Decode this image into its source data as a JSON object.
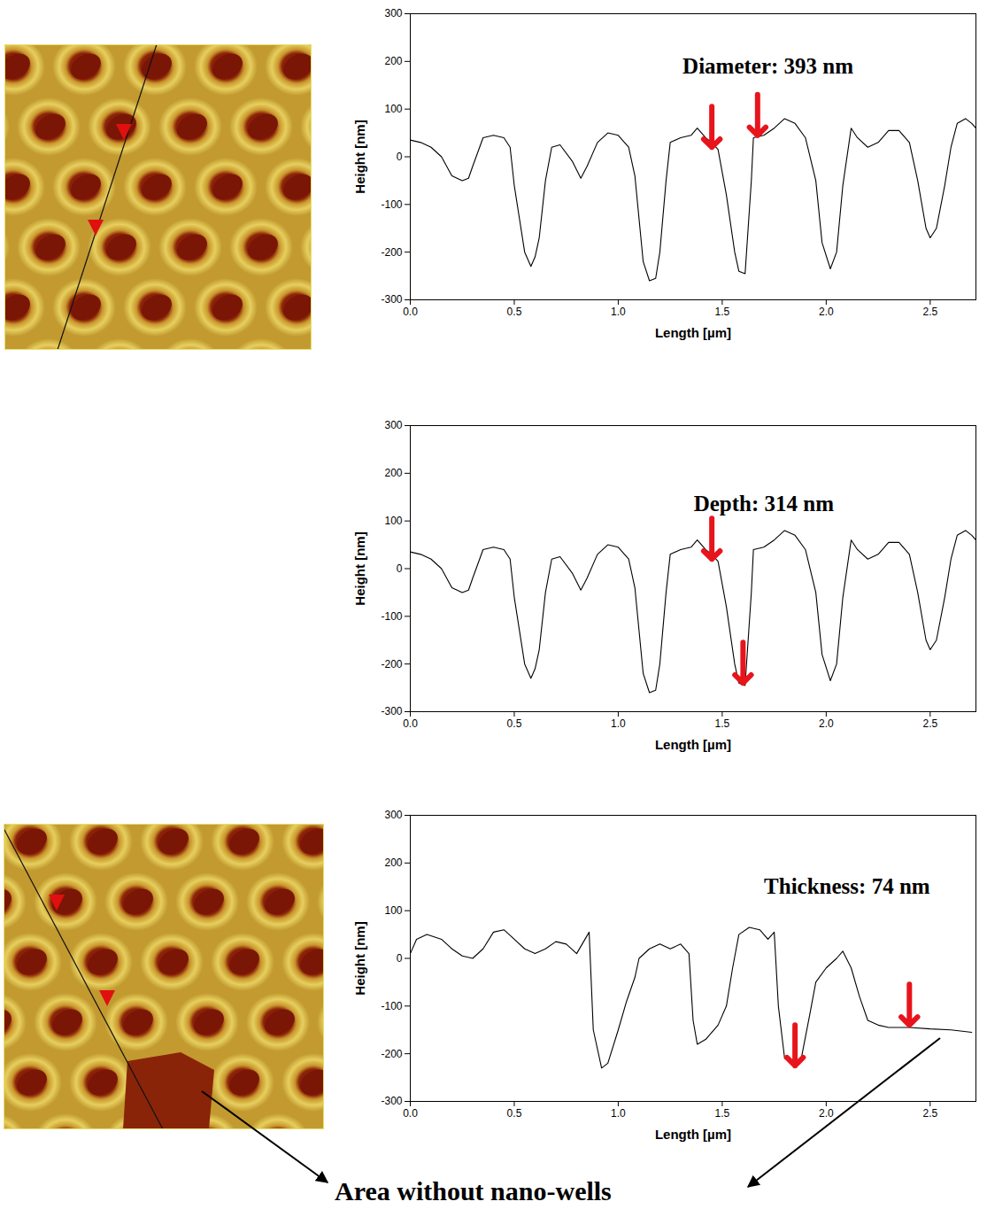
{
  "chart_data": [
    {
      "type": "line",
      "color": "#000000",
      "x_label": "Length [µm]",
      "y_label": "Height [nm]",
      "xlim": [
        0,
        2.72
      ],
      "xticks": [
        {
          "value": 0,
          "label": "0.0"
        },
        0.5,
        {
          "value": 1,
          "label": "1.0"
        },
        1.5,
        {
          "value": 2,
          "label": "2.0"
        },
        2.5
      ],
      "ylim": [
        -300,
        300
      ],
      "yticks": [
        -300,
        -200,
        -100,
        0,
        100,
        200,
        300
      ],
      "x": [
        0,
        0.05,
        0.1,
        0.15,
        0.2,
        0.25,
        0.28,
        0.3,
        0.35,
        0.4,
        0.45,
        0.48,
        0.5,
        0.55,
        0.58,
        0.6,
        0.62,
        0.65,
        0.68,
        0.72,
        0.78,
        0.82,
        0.85,
        0.9,
        0.95,
        1.0,
        1.05,
        1.08,
        1.12,
        1.15,
        1.18,
        1.2,
        1.23,
        1.25,
        1.3,
        1.35,
        1.38,
        1.42,
        1.45,
        1.48,
        1.52,
        1.56,
        1.58,
        1.61,
        1.64,
        1.65,
        1.7,
        1.75,
        1.8,
        1.85,
        1.9,
        1.95,
        1.98,
        2.02,
        2.05,
        2.08,
        2.12,
        2.15,
        2.2,
        2.25,
        2.3,
        2.35,
        2.4,
        2.44,
        2.48,
        2.5,
        2.53,
        2.57,
        2.6,
        2.63,
        2.67,
        2.7,
        2.72
      ],
      "values": [
        35,
        30,
        20,
        0,
        -40,
        -50,
        -45,
        -20,
        40,
        45,
        40,
        20,
        -60,
        -200,
        -230,
        -210,
        -170,
        -50,
        20,
        25,
        -10,
        -45,
        -20,
        30,
        50,
        45,
        20,
        -40,
        -220,
        -260,
        -255,
        -200,
        -50,
        30,
        40,
        45,
        60,
        40,
        30,
        15,
        -80,
        -200,
        -240,
        -245,
        -50,
        40,
        45,
        60,
        80,
        70,
        40,
        -50,
        -180,
        -235,
        -200,
        -60,
        60,
        40,
        20,
        30,
        55,
        55,
        30,
        -50,
        -150,
        -170,
        -150,
        -60,
        20,
        70,
        80,
        70,
        60
      ],
      "annotation": {
        "text": "Diameter: 393 nm",
        "x": 1.72,
        "y": 190
      },
      "arrows": [
        {
          "x": 1.45,
          "y": 20
        },
        {
          "x": 1.67,
          "y": 45
        }
      ]
    },
    {
      "type": "line",
      "color": "#000000",
      "x_label": "Length [µm]",
      "y_label": "Height [nm]",
      "xlim": [
        0,
        2.72
      ],
      "xticks": [
        {
          "value": 0,
          "label": "0.0"
        },
        0.5,
        {
          "value": 1,
          "label": "1.0"
        },
        1.5,
        {
          "value": 2,
          "label": "2.0"
        },
        2.5
      ],
      "ylim": [
        -300,
        300
      ],
      "yticks": [
        -300,
        -200,
        -100,
        0,
        100,
        200,
        300
      ],
      "x": [
        0,
        0.05,
        0.1,
        0.15,
        0.2,
        0.25,
        0.28,
        0.3,
        0.35,
        0.4,
        0.45,
        0.48,
        0.5,
        0.55,
        0.58,
        0.6,
        0.62,
        0.65,
        0.68,
        0.72,
        0.78,
        0.82,
        0.85,
        0.9,
        0.95,
        1.0,
        1.05,
        1.08,
        1.12,
        1.15,
        1.18,
        1.2,
        1.23,
        1.25,
        1.3,
        1.35,
        1.38,
        1.42,
        1.45,
        1.48,
        1.52,
        1.56,
        1.58,
        1.61,
        1.64,
        1.65,
        1.7,
        1.75,
        1.8,
        1.85,
        1.9,
        1.95,
        1.98,
        2.02,
        2.05,
        2.08,
        2.12,
        2.15,
        2.2,
        2.25,
        2.3,
        2.35,
        2.4,
        2.44,
        2.48,
        2.5,
        2.53,
        2.57,
        2.6,
        2.63,
        2.67,
        2.7,
        2.72
      ],
      "values": [
        35,
        30,
        20,
        0,
        -40,
        -50,
        -45,
        -20,
        40,
        45,
        40,
        20,
        -60,
        -200,
        -230,
        -210,
        -170,
        -50,
        20,
        25,
        -10,
        -45,
        -20,
        30,
        50,
        45,
        20,
        -40,
        -220,
        -260,
        -255,
        -200,
        -50,
        30,
        40,
        45,
        60,
        40,
        30,
        15,
        -80,
        -200,
        -240,
        -245,
        -50,
        40,
        45,
        60,
        80,
        70,
        40,
        -50,
        -180,
        -235,
        -200,
        -60,
        60,
        40,
        20,
        30,
        55,
        55,
        30,
        -50,
        -150,
        -170,
        -150,
        -60,
        20,
        70,
        80,
        70,
        60
      ],
      "annotation": {
        "text": "Depth: 314 nm",
        "x": 1.7,
        "y": 135
      },
      "arrows": [
        {
          "x": 1.45,
          "y": 20
        },
        {
          "x": 1.6,
          "y": -240
        }
      ]
    },
    {
      "type": "line",
      "color": "#000000",
      "x_label": "Length [µm]",
      "y_label": "Height [nm]",
      "xlim": [
        0,
        2.72
      ],
      "xticks": [
        {
          "value": 0,
          "label": "0.0"
        },
        0.5,
        {
          "value": 1,
          "label": "1.0"
        },
        1.5,
        {
          "value": 2,
          "label": "2.0"
        },
        2.5
      ],
      "ylim": [
        -300,
        300
      ],
      "yticks": [
        -300,
        -200,
        -100,
        0,
        100,
        200,
        300
      ],
      "x": [
        0,
        0.03,
        0.08,
        0.15,
        0.2,
        0.25,
        0.3,
        0.35,
        0.4,
        0.45,
        0.5,
        0.55,
        0.6,
        0.65,
        0.7,
        0.75,
        0.8,
        0.86,
        0.88,
        0.92,
        0.95,
        1.0,
        1.04,
        1.08,
        1.1,
        1.15,
        1.2,
        1.25,
        1.3,
        1.34,
        1.36,
        1.38,
        1.42,
        1.48,
        1.52,
        1.55,
        1.58,
        1.63,
        1.68,
        1.72,
        1.75,
        1.77,
        1.8,
        1.85,
        1.88,
        1.92,
        1.95,
        2.0,
        2.05,
        2.08,
        2.12,
        2.16,
        2.2,
        2.25,
        2.3,
        2.4,
        2.5,
        2.6,
        2.7
      ],
      "values": [
        10,
        40,
        50,
        40,
        20,
        5,
        0,
        20,
        55,
        60,
        40,
        20,
        10,
        20,
        35,
        30,
        10,
        55,
        -150,
        -230,
        -220,
        -150,
        -90,
        -40,
        0,
        20,
        30,
        20,
        30,
        10,
        -130,
        -180,
        -170,
        -140,
        -100,
        -20,
        50,
        65,
        60,
        40,
        55,
        -100,
        -210,
        -220,
        -210,
        -120,
        -50,
        -20,
        0,
        15,
        -20,
        -80,
        -130,
        -140,
        -145,
        -145,
        -148,
        -150,
        -155
      ],
      "annotation": {
        "text": "Thickness: 74 nm",
        "x": 2.1,
        "y": 150
      },
      "arrows": [
        {
          "x": 1.85,
          "y": -225
        },
        {
          "x": 2.4,
          "y": -140
        }
      ]
    }
  ],
  "footnote": "Area without nano-wells"
}
